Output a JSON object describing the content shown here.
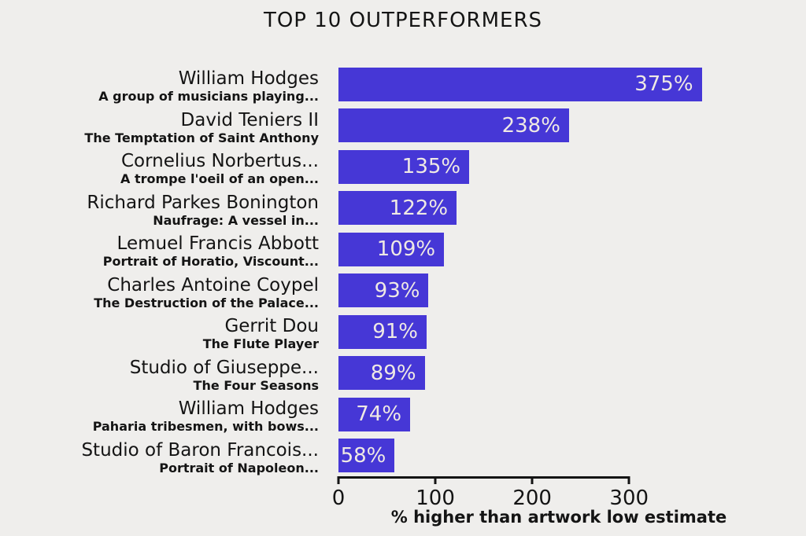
{
  "colors": {
    "background": "#efeeec",
    "bar": "#4637d6",
    "bar_label": "#efe9e4",
    "text": "#141414",
    "axis": "#141414"
  },
  "chart_data": {
    "type": "bar",
    "orientation": "horizontal",
    "title": "TOP 10 OUTPERFORMERS",
    "xlabel": "% higher than artwork low estimate",
    "xticks": [
      0,
      100,
      200,
      300
    ],
    "xlim": [
      0,
      455
    ],
    "grid": false,
    "legend": false,
    "categories": [
      "William Hodges",
      "David Teniers II",
      "Cornelius Norbertus...",
      "Richard Parkes Bonington",
      "Lemuel Francis Abbott",
      "Charles Antoine Coypel",
      "Gerrit Dou",
      "Studio of Giuseppe...",
      "William Hodges",
      "Studio of Baron Francois..."
    ],
    "subtitles": [
      "A group of musicians playing...",
      "The Temptation of Saint Anthony",
      "A trompe l'oeil of an open...",
      "Naufrage: A vessel in...",
      "Portrait of Horatio, Viscount...",
      "The Destruction of the Palace...",
      "The Flute Player",
      "The Four Seasons",
      "Paharia tribesmen, with bows...",
      "Portrait of Napoleon..."
    ],
    "values": [
      375,
      238,
      135,
      122,
      109,
      93,
      91,
      89,
      74,
      58
    ],
    "value_labels": [
      "375%",
      "238%",
      "135%",
      "122%",
      "109%",
      "93%",
      "91%",
      "89%",
      "74%",
      "58%"
    ]
  }
}
